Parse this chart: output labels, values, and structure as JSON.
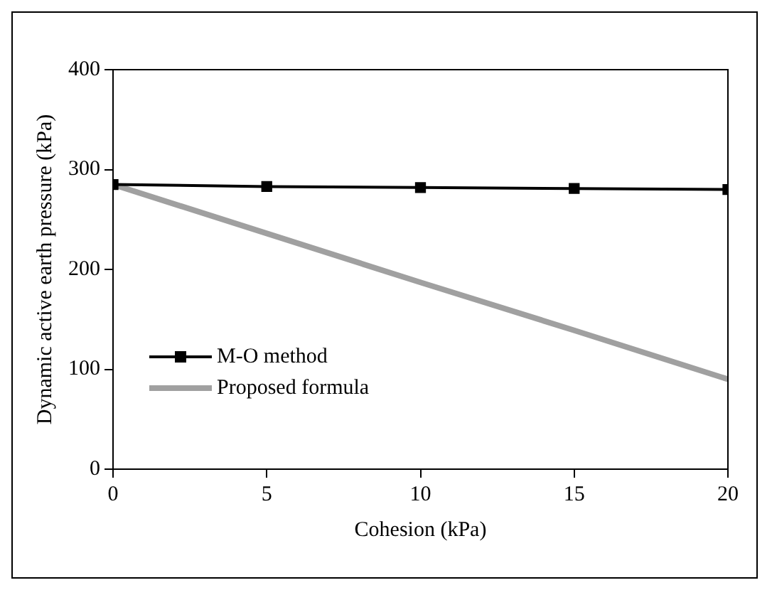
{
  "chart_data": {
    "type": "line",
    "xlabel": "Cohesion (kPa)",
    "ylabel": "Dynamic active earth pressure (kPa)",
    "x": [
      0,
      5,
      10,
      15,
      20
    ],
    "series": [
      {
        "name": "M-O method",
        "color": "#000000",
        "values": [
          285,
          283,
          282,
          281,
          280
        ],
        "marker": "square"
      },
      {
        "name": "Proposed formula",
        "color": "#a0a0a0",
        "values": [
          285,
          236,
          187,
          139,
          90
        ],
        "marker": "none"
      }
    ],
    "xlim": [
      0,
      20
    ],
    "xticks": [
      0,
      5,
      10,
      15,
      20
    ],
    "ylim": [
      0,
      400
    ],
    "yticks": [
      0,
      100,
      200,
      300,
      400
    ],
    "grid": false,
    "legend": "bottom left"
  }
}
